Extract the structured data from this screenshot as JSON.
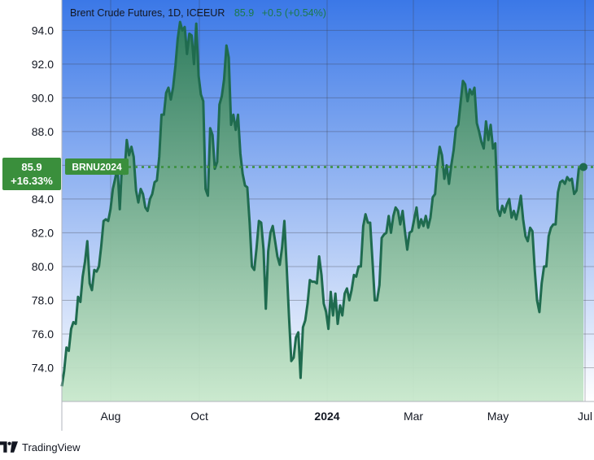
{
  "chart_data": {
    "type": "area",
    "title": "Brent Crude Futures, 1D, ICEEUR",
    "last_value": "85.9",
    "change": "+0.5 (+0.54%)",
    "symbol": "BRNU2024",
    "percent_change": "+16.33%",
    "y_ticks": [
      "74.0",
      "76.0",
      "78.0",
      "80.0",
      "82.0",
      "84.0",
      "86.0",
      "88.0",
      "90.0",
      "92.0",
      "94.0"
    ],
    "x_ticks": [
      "Aug",
      "Oct",
      "2024",
      "Mar",
      "May",
      "Jul"
    ],
    "ylim": [
      72.0,
      95.8
    ],
    "grid": true,
    "colors": {
      "line": "#1f6b4f",
      "fill_top": "#2f7d58",
      "fill_bottom": "#c8e8cc",
      "bg_top": "#3b78e7",
      "bg_bottom": "#ffffff",
      "label_bg": "#3a8f3c",
      "tag_text": "#ffffff"
    },
    "series": [
      {
        "values": [
          72.9,
          73.8,
          75.2,
          75.0,
          76.3,
          76.7,
          76.6,
          78.2,
          77.9,
          79.4,
          80.3,
          81.5,
          79.0,
          78.6,
          79.8,
          79.7,
          80.0,
          81.2,
          82.7,
          82.8,
          82.7,
          83.4,
          84.6,
          85.2,
          85.9,
          83.4,
          86.2,
          85.5,
          87.5,
          86.6,
          87.1,
          86.5,
          84.5,
          83.8,
          84.6,
          84.3,
          83.5,
          83.3,
          84.0,
          84.3,
          85.0,
          85.1,
          86.5,
          89.0,
          89.0,
          90.3,
          90.6,
          89.9,
          90.6,
          91.9,
          93.5,
          94.5,
          94.0,
          94.2,
          92.6,
          93.8,
          93.7,
          92.0,
          94.4,
          91.3,
          90.2,
          89.8,
          84.6,
          84.2,
          88.2,
          87.8,
          85.8,
          86.2,
          89.6,
          90.1,
          91.1,
          93.1,
          92.4,
          88.4,
          89.0,
          88.1,
          89.0,
          86.7,
          85.5,
          84.8,
          84.7,
          82.6,
          80.0,
          79.8,
          81.1,
          82.7,
          82.6,
          81.0,
          77.5,
          80.9,
          82.0,
          82.4,
          81.5,
          80.6,
          80.1,
          81.1,
          82.7,
          80.0,
          77.0,
          74.4,
          74.6,
          75.8,
          76.1,
          73.4,
          76.4,
          76.8,
          77.8,
          79.2,
          79.1,
          79.1,
          79.0,
          80.6,
          79.5,
          77.8,
          77.3,
          76.3,
          78.5,
          77.1,
          78.4,
          76.6,
          77.7,
          77.1,
          78.4,
          78.7,
          78.0,
          78.6,
          79.5,
          79.4,
          80.0,
          80.0,
          82.4,
          83.1,
          82.6,
          82.6,
          80.3,
          78.0,
          78.0,
          78.9,
          81.7,
          81.9,
          82.0,
          83.0,
          82.0,
          83.0,
          83.5,
          83.3,
          82.5,
          83.3,
          82.1,
          81.0,
          82.0,
          82.1,
          82.8,
          83.5,
          82.3,
          82.8,
          82.4,
          83.0,
          82.3,
          82.9,
          84.1,
          84.3,
          86.0,
          87.1,
          86.6,
          85.2,
          86.0,
          84.9,
          86.0,
          86.9,
          88.2,
          88.4,
          89.7,
          91.0,
          90.8,
          89.8,
          90.5,
          90.2,
          90.6,
          88.5,
          88.0,
          87.4,
          87.0,
          88.6,
          87.5,
          88.4,
          87.0,
          87.3,
          83.4,
          83.0,
          83.6,
          83.2,
          83.7,
          84.0,
          82.9,
          83.3,
          82.8,
          83.4,
          84.2,
          82.8,
          81.8,
          81.5,
          82.3,
          82.1,
          79.8,
          78.0,
          77.3,
          79.0,
          80.0,
          80.0,
          81.8,
          82.3,
          82.5,
          82.5,
          84.4,
          85.0,
          85.1,
          84.9,
          85.3,
          85.1,
          85.2,
          84.3,
          84.5,
          85.8,
          85.9,
          85.9
        ]
      }
    ]
  },
  "branding": {
    "text": "TradingView"
  }
}
